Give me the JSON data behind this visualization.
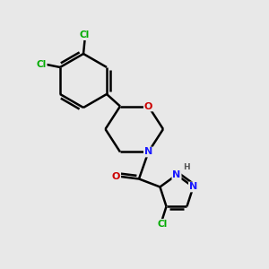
{
  "background_color": "#e8e8e8",
  "bond_color": "#000000",
  "bond_width": 1.8,
  "atom_colors": {
    "C": "#000000",
    "N": "#1a1aff",
    "O": "#cc0000",
    "Cl": "#00aa00",
    "H": "#555555"
  },
  "figsize": [
    3.0,
    3.0
  ],
  "dpi": 100,
  "xlim": [
    0,
    10
  ],
  "ylim": [
    0,
    10
  ]
}
